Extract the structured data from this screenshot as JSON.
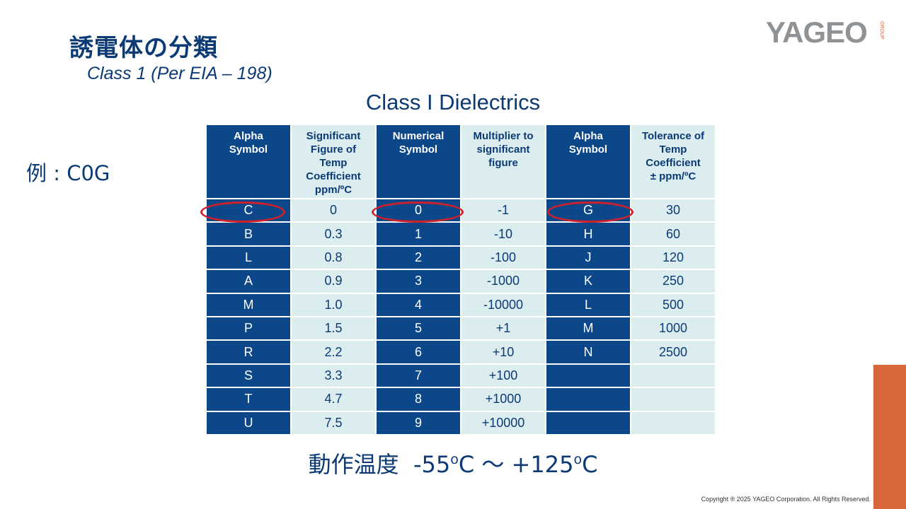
{
  "slide": {
    "title": "誘電体の分類",
    "subtitle": "Class 1 (Per EIA – 198)",
    "table_title": "Class I Dielectrics",
    "example": "例 :  C0G",
    "copyright": "Copyright ® 2025 YAGEO Corporation. All Rights Reserved."
  },
  "logo": {
    "word": "YAGEO",
    "group": "GROUP"
  },
  "table": {
    "headers": [
      [
        "Alpha",
        "Symbol"
      ],
      [
        "Significant",
        "Figure of",
        "Temp",
        "Coefficient",
        "ppm/ºC"
      ],
      [
        "Numerical",
        "Symbol"
      ],
      [
        "Multiplier to",
        "significant",
        "figure"
      ],
      [
        "Alpha",
        "Symbol"
      ],
      [
        "Tolerance of",
        "Temp",
        "Coefficient",
        "± ppm/ºC"
      ]
    ],
    "rows": [
      [
        "C",
        "0",
        "0",
        "-1",
        "G",
        "30"
      ],
      [
        "B",
        "0.3",
        "1",
        "-10",
        "H",
        "60"
      ],
      [
        "L",
        "0.8",
        "2",
        "-100",
        "J",
        "120"
      ],
      [
        "A",
        "0.9",
        "3",
        "-1000",
        "K",
        "250"
      ],
      [
        "M",
        "1.0",
        "4",
        "-10000",
        "L",
        "500"
      ],
      [
        "P",
        "1.5",
        "5",
        "+1",
        "M",
        "1000"
      ],
      [
        "R",
        "2.2",
        "6",
        "+10",
        "N",
        "2500"
      ],
      [
        "S",
        "3.3",
        "7",
        "+100",
        "",
        ""
      ],
      [
        "T",
        "4.7",
        "8",
        "+1000",
        "",
        ""
      ],
      [
        "U",
        "7.5",
        "9",
        "+10000",
        "",
        ""
      ]
    ]
  },
  "temperature": {
    "label": "動作温度",
    "min": "-55",
    "min_unit_sup": "o",
    "min_unit": "C",
    "separator": "～",
    "max": "+125",
    "max_unit_sup": "o",
    "max_unit": "C"
  },
  "colors": {
    "dark_cell": "#0b4789",
    "light_cell": "#dcedf0",
    "highlight_oval": "#d0202a",
    "accent_bar": "#d8683a"
  }
}
